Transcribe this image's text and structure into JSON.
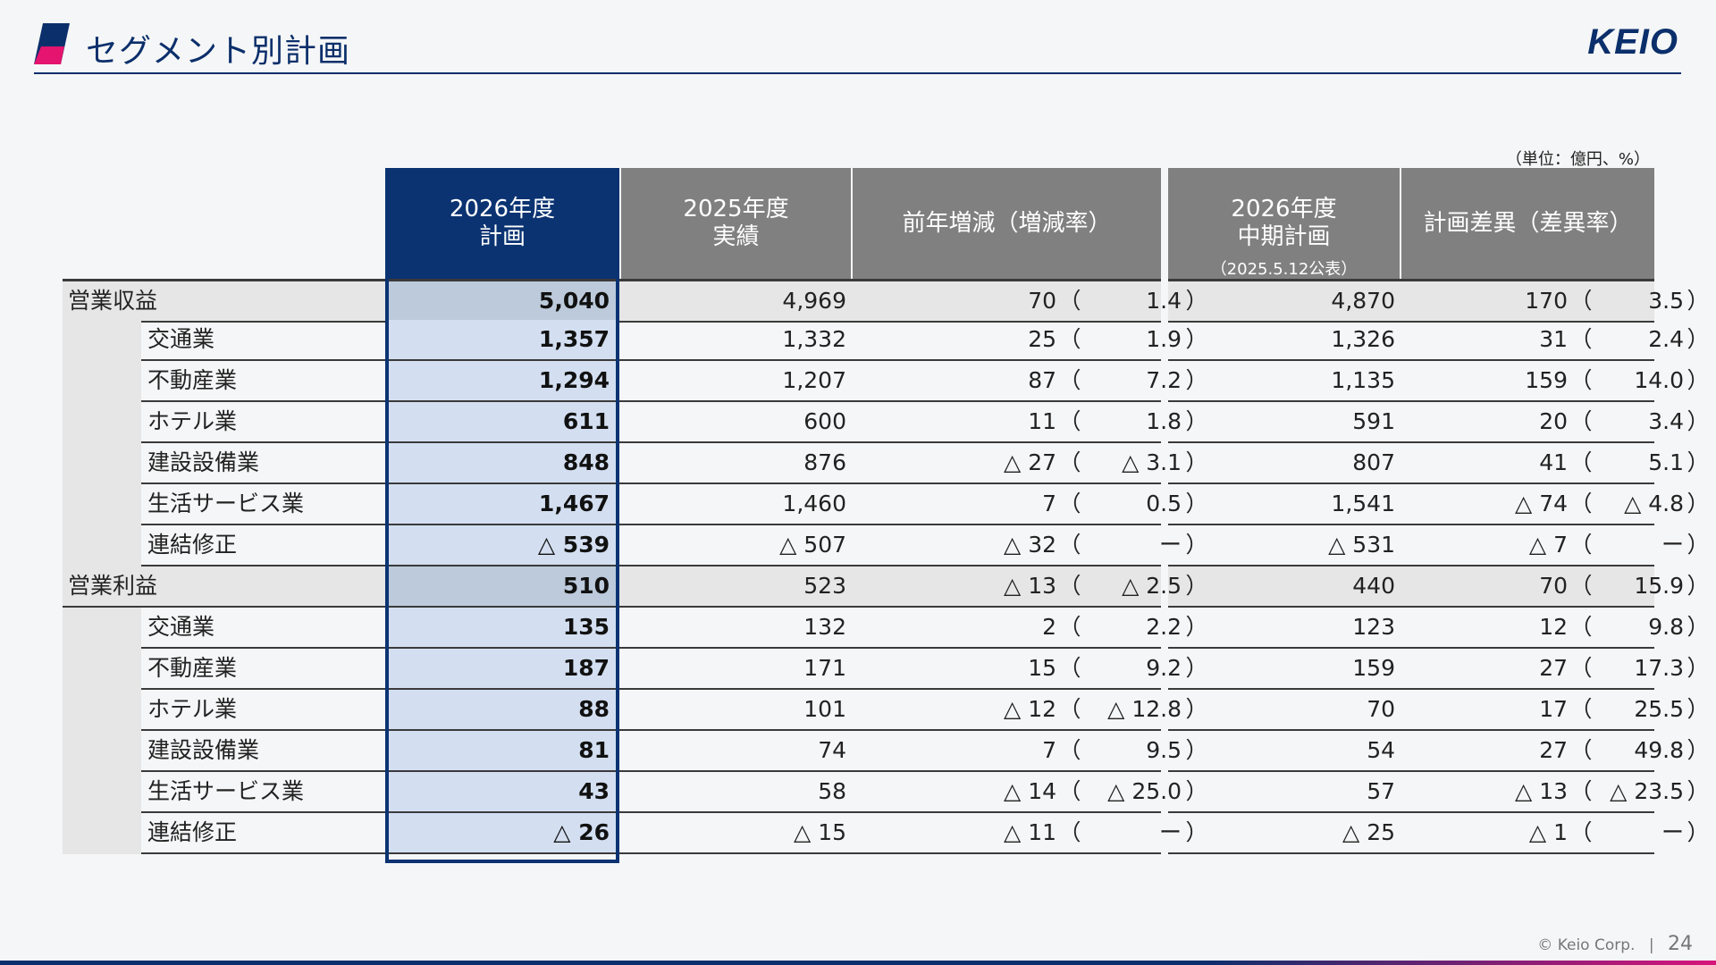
{
  "header": {
    "title": "セグメント別計画",
    "logo_text": "KEIO",
    "accent_pink": "#e4146f",
    "accent_navy": "#0b2f6b"
  },
  "unit_note": "（単位：億円、%）",
  "columns": {
    "plan": {
      "line1": "2026年度",
      "line2": "計画"
    },
    "actual": {
      "line1": "2025年度",
      "line2": "実績"
    },
    "yoy": {
      "line1": "前年増減（増減率）"
    },
    "midterm": {
      "line1": "2026年度",
      "line2": "中期計画",
      "note": "（2025.5.12公表）"
    },
    "diff": {
      "line1": "計画差異（差異率）"
    }
  },
  "rows": [
    {
      "label": "営業収益",
      "total": true,
      "plan": "5,040",
      "actual": "4,969",
      "yoy": "70",
      "yoy_rate": "1.4",
      "mid": "4,870",
      "diff": "170",
      "diff_rate": "3.5"
    },
    {
      "label": "交通業",
      "total": false,
      "plan": "1,357",
      "actual": "1,332",
      "yoy": "25",
      "yoy_rate": "1.9",
      "mid": "1,326",
      "diff": "31",
      "diff_rate": "2.4"
    },
    {
      "label": "不動産業",
      "total": false,
      "plan": "1,294",
      "actual": "1,207",
      "yoy": "87",
      "yoy_rate": "7.2",
      "mid": "1,135",
      "diff": "159",
      "diff_rate": "14.0"
    },
    {
      "label": "ホテル業",
      "total": false,
      "plan": "611",
      "actual": "600",
      "yoy": "11",
      "yoy_rate": "1.8",
      "mid": "591",
      "diff": "20",
      "diff_rate": "3.4"
    },
    {
      "label": "建設設備業",
      "total": false,
      "plan": "848",
      "actual": "876",
      "yoy": "△ 27",
      "yoy_rate": "△ 3.1",
      "mid": "807",
      "diff": "41",
      "diff_rate": "5.1"
    },
    {
      "label": "生活サービス業",
      "total": false,
      "plan": "1,467",
      "actual": "1,460",
      "yoy": "7",
      "yoy_rate": "0.5",
      "mid": "1,541",
      "diff": "△ 74",
      "diff_rate": "△ 4.8"
    },
    {
      "label": "連結修正",
      "total": false,
      "plan": "△ 539",
      "actual": "△ 507",
      "yoy": "△ 32",
      "yoy_rate": "ー",
      "mid": "△ 531",
      "diff": "△ 7",
      "diff_rate": "ー"
    },
    {
      "label": "営業利益",
      "total": true,
      "plan": "510",
      "actual": "523",
      "yoy": "△ 13",
      "yoy_rate": "△ 2.5",
      "mid": "440",
      "diff": "70",
      "diff_rate": "15.9"
    },
    {
      "label": "交通業",
      "total": false,
      "plan": "135",
      "actual": "132",
      "yoy": "2",
      "yoy_rate": "2.2",
      "mid": "123",
      "diff": "12",
      "diff_rate": "9.8"
    },
    {
      "label": "不動産業",
      "total": false,
      "plan": "187",
      "actual": "171",
      "yoy": "15",
      "yoy_rate": "9.2",
      "mid": "159",
      "diff": "27",
      "diff_rate": "17.3"
    },
    {
      "label": "ホテル業",
      "total": false,
      "plan": "88",
      "actual": "101",
      "yoy": "△ 12",
      "yoy_rate": "△ 12.8",
      "mid": "70",
      "diff": "17",
      "diff_rate": "25.5"
    },
    {
      "label": "建設設備業",
      "total": false,
      "plan": "81",
      "actual": "74",
      "yoy": "7",
      "yoy_rate": "9.5",
      "mid": "54",
      "diff": "27",
      "diff_rate": "49.8"
    },
    {
      "label": "生活サービス業",
      "total": false,
      "plan": "43",
      "actual": "58",
      "yoy": "△ 14",
      "yoy_rate": "△ 25.0",
      "mid": "57",
      "diff": "△ 13",
      "diff_rate": "△ 23.5"
    },
    {
      "label": "連結修正",
      "total": false,
      "plan": "△ 26",
      "actual": "△ 15",
      "yoy": "△ 11",
      "yoy_rate": "ー",
      "mid": "△ 25",
      "diff": "△ 1",
      "diff_rate": "ー"
    }
  ],
  "paren_open": "（",
  "paren_close": "）",
  "footer": {
    "copyright": "© Keio Corp.",
    "separator": "|",
    "page": "24"
  }
}
